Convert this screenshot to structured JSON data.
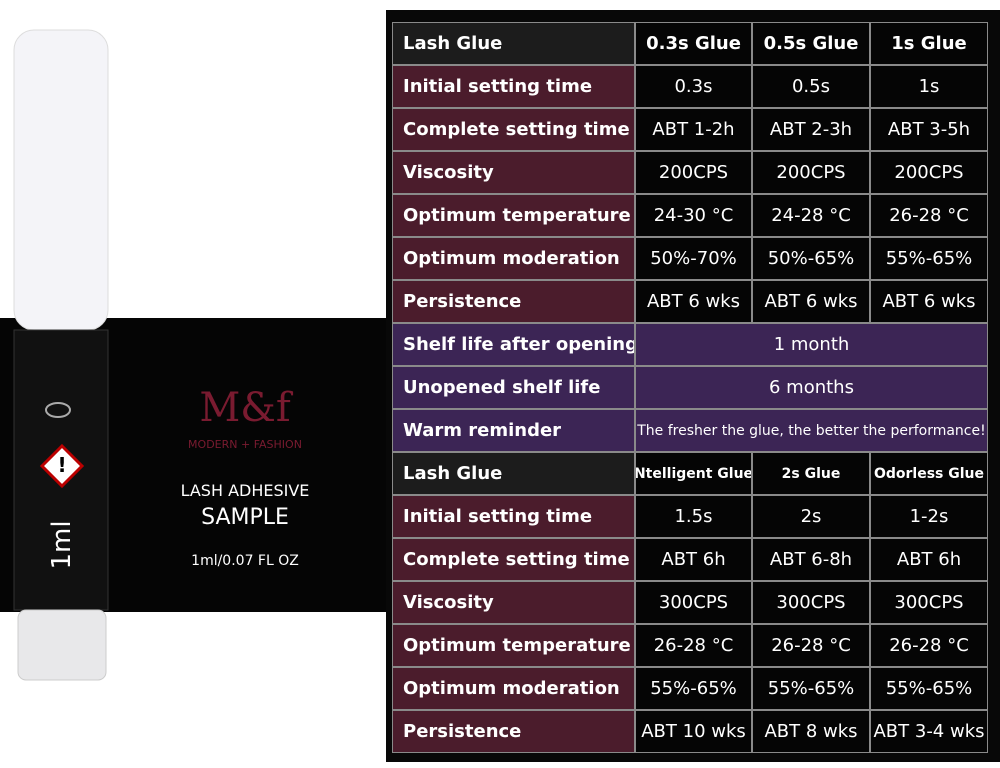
{
  "product": {
    "logo": "M&f",
    "brand": "MODERN + FASHION",
    "line1": "LASH ADHESIVE",
    "line2": "SAMPLE",
    "volume": "1ml/0.07 FL OZ",
    "tube_label": "1ml"
  },
  "table": {
    "header1": [
      "Lash Glue",
      "0.3s Glue",
      "0.5s Glue",
      "1s Glue"
    ],
    "rows1": [
      [
        "Initial setting time",
        "0.3s",
        "0.5s",
        "1s"
      ],
      [
        "Complete setting time",
        "ABT 1-2h",
        "ABT 2-3h",
        "ABT 3-5h"
      ],
      [
        "Viscosity",
        "200CPS",
        "200CPS",
        "200CPS"
      ],
      [
        "Optimum temperature",
        "24-30 °C",
        "24-28 °C",
        "26-28 °C"
      ],
      [
        "Optimum moderation",
        "50%-70%",
        "50%-65%",
        "55%-65%"
      ],
      [
        "Persistence",
        "ABT 6 wks",
        "ABT 6 wks",
        "ABT 6 wks"
      ]
    ],
    "shared": [
      [
        "Shelf life after opening",
        "1 month"
      ],
      [
        "Unopened shelf life",
        "6 months"
      ],
      [
        "Warm reminder",
        "The fresher the glue, the better the performance!"
      ]
    ],
    "header2": [
      "Lash Glue",
      "Ntelligent Glue",
      "2s Glue",
      "Odorless Glue"
    ],
    "rows2": [
      [
        "Initial setting time",
        "1.5s",
        "2s",
        "1-2s"
      ],
      [
        "Complete setting time",
        "ABT 6h",
        "ABT 6-8h",
        "ABT 6h"
      ],
      [
        "Viscosity",
        "300CPS",
        "300CPS",
        "300CPS"
      ],
      [
        "Optimum temperature",
        "26-28 °C",
        "26-28 °C",
        "26-28 °C"
      ],
      [
        "Optimum moderation",
        "55%-65%",
        "55%-65%",
        "55%-65%"
      ],
      [
        "Persistence",
        "ABT 10 wks",
        "ABT 8 wks",
        "ABT 3-4 wks"
      ]
    ]
  }
}
